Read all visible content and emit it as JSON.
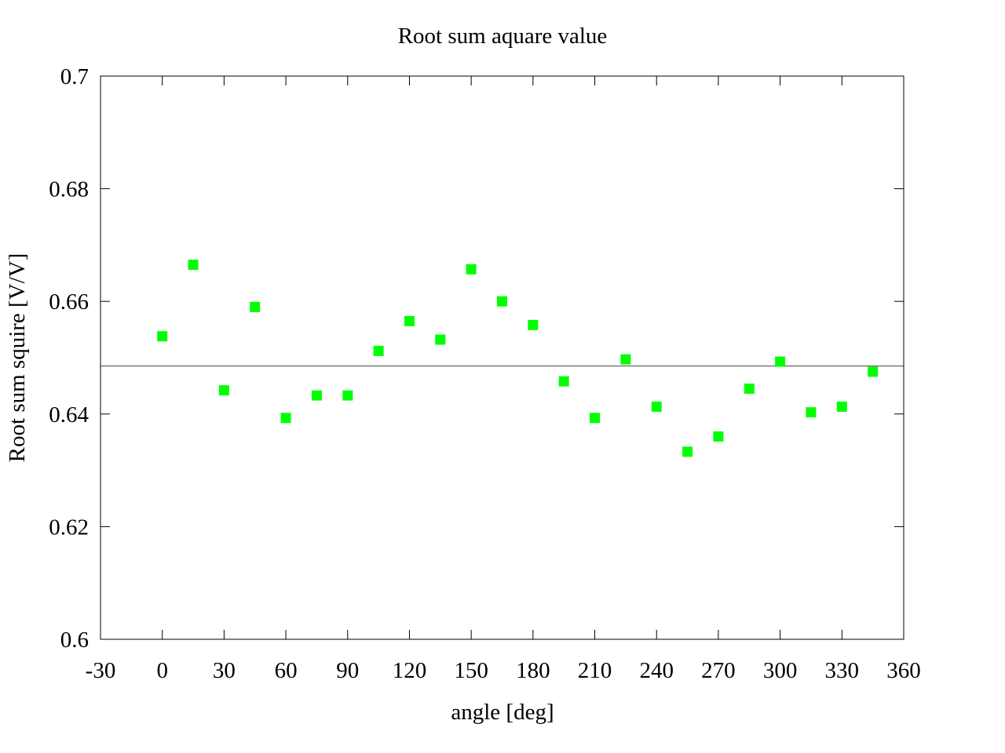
{
  "chart_data": {
    "type": "scatter",
    "title": "Root sum aquare value",
    "xlabel": "angle [deg]",
    "ylabel": "Root sum squire [V/V]",
    "xlim": [
      -30,
      360
    ],
    "ylim": [
      0.6,
      0.7
    ],
    "x_ticks": [
      -30,
      0,
      30,
      60,
      90,
      120,
      150,
      180,
      210,
      240,
      270,
      300,
      330,
      360
    ],
    "y_ticks": [
      0.6,
      0.62,
      0.64,
      0.66,
      0.68,
      0.7
    ],
    "x_tick_labels": [
      "-30",
      "0",
      "30",
      "60",
      "90",
      "120",
      "150",
      "180",
      "210",
      "240",
      "270",
      "300",
      "330",
      "360"
    ],
    "y_tick_labels": [
      "0.6",
      "0.62",
      "0.64",
      "0.66",
      "0.68",
      "0.7"
    ],
    "grid": false,
    "series": [
      {
        "color": "#00ff00",
        "marker": "square",
        "points": [
          {
            "x": 0,
            "y": 0.6538
          },
          {
            "x": 15,
            "y": 0.6665
          },
          {
            "x": 30,
            "y": 0.6442
          },
          {
            "x": 45,
            "y": 0.659
          },
          {
            "x": 60,
            "y": 0.6393
          },
          {
            "x": 75,
            "y": 0.6433
          },
          {
            "x": 90,
            "y": 0.6433
          },
          {
            "x": 105,
            "y": 0.6512
          },
          {
            "x": 120,
            "y": 0.6565
          },
          {
            "x": 135,
            "y": 0.6532
          },
          {
            "x": 150,
            "y": 0.6657
          },
          {
            "x": 165,
            "y": 0.66
          },
          {
            "x": 180,
            "y": 0.6558
          },
          {
            "x": 195,
            "y": 0.6458
          },
          {
            "x": 210,
            "y": 0.6393
          },
          {
            "x": 225,
            "y": 0.6497
          },
          {
            "x": 240,
            "y": 0.6413
          },
          {
            "x": 255,
            "y": 0.6333
          },
          {
            "x": 270,
            "y": 0.636
          },
          {
            "x": 285,
            "y": 0.6445
          },
          {
            "x": 300,
            "y": 0.6493
          },
          {
            "x": 315,
            "y": 0.6403
          },
          {
            "x": 330,
            "y": 0.6413
          },
          {
            "x": 345,
            "y": 0.6475
          }
        ]
      }
    ],
    "reference_line": {
      "y": 0.6485,
      "color": "#000000"
    }
  }
}
